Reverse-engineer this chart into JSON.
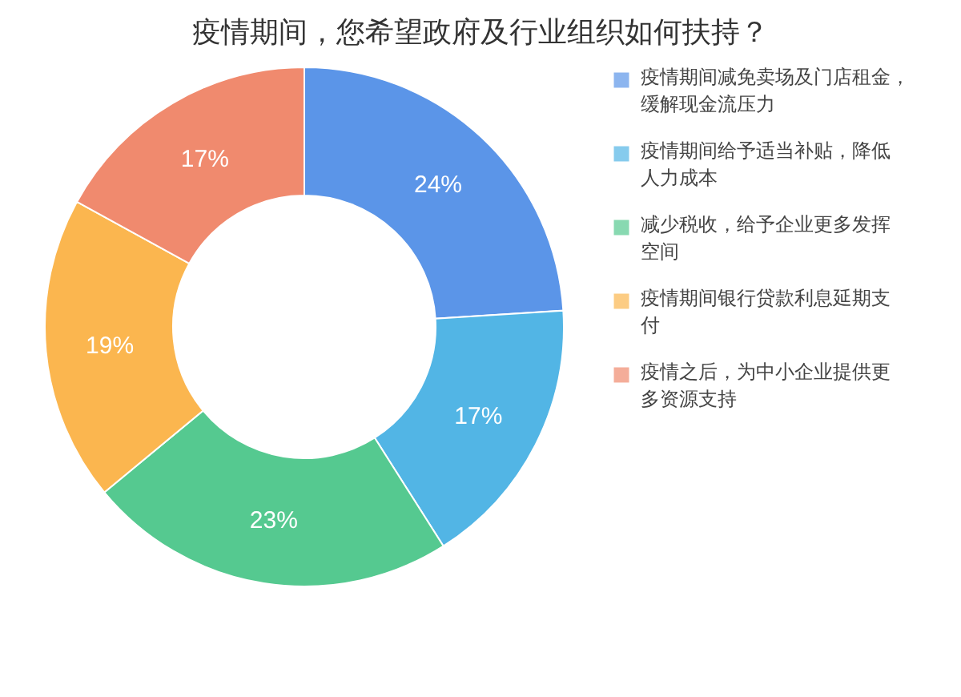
{
  "chart_data": {
    "type": "donut",
    "title": "疫情期间，您希望政府及行业组织如何扶持？",
    "categories": [
      "疫情期间减免卖场及门店租金，缓解现金流压力",
      "疫情期间给予适当补贴，降低人力成本",
      "减少税收，给予企业更多发挥空间",
      "疫情期间银行贷款利息延期支付",
      "疫情之后，为中小企业提供更多资源支持"
    ],
    "values": [
      24,
      17,
      23,
      19,
      17
    ],
    "value_labels": [
      "24%",
      "17%",
      "23%",
      "19%",
      "17%"
    ],
    "colors": [
      "#5b95e8",
      "#52b5e5",
      "#55c990",
      "#fbb64f",
      "#f08a6e"
    ],
    "legend": "right"
  }
}
